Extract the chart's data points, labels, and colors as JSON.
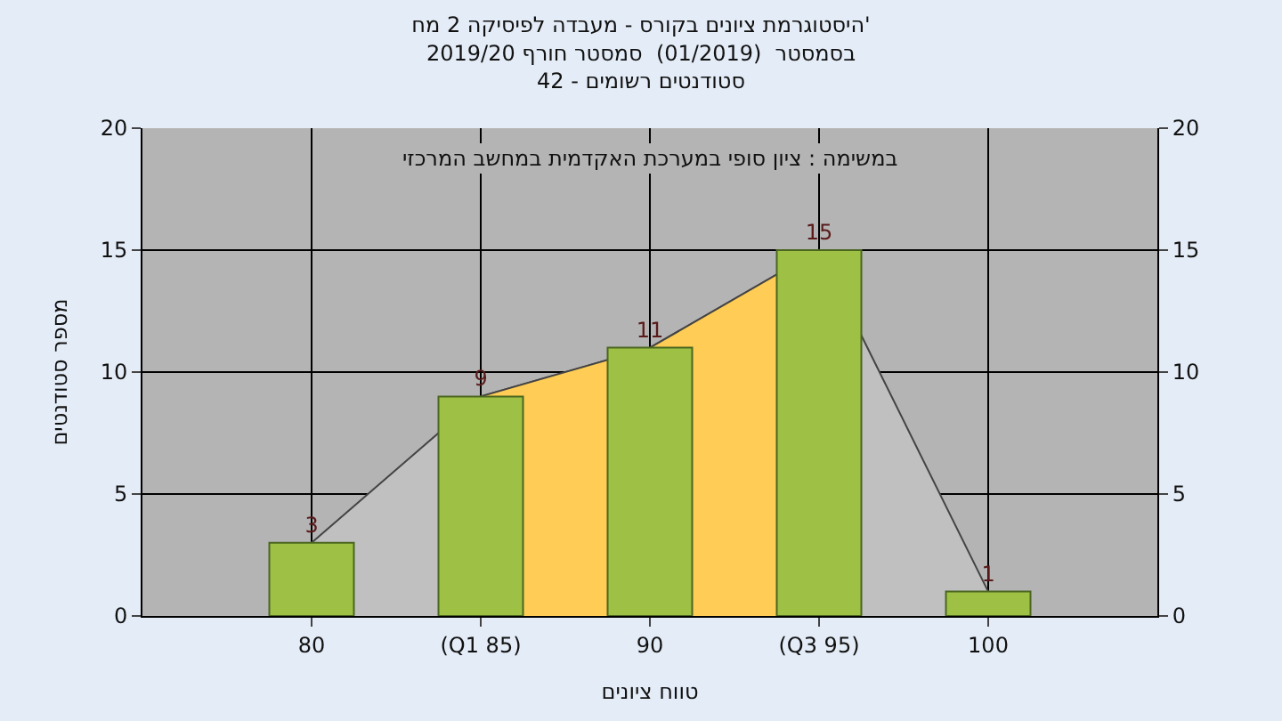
{
  "chart_data": {
    "type": "bar",
    "title": "היסטוגרמת ציונים בקורס - מעבדה לפיסיקה 2 מח'",
    "subtitle": "בסמסטר  (01/2019)  סמסטר חורף 2019/20\nסטודנטים רשומים - 42",
    "xlabel": "טווח ציונים",
    "ylabel": "מספר סטודנטים",
    "annotations": [
      "במשימה : ציון סופי במערכת האקדמית במחשב המרכזי"
    ],
    "categories": [
      "80",
      "(Q1 85)",
      "90",
      "(Q3 95)",
      "100"
    ],
    "series": [
      {
        "type": "area",
        "color": "#c0c0c0",
        "values": [
          3,
          9,
          11,
          15,
          1
        ]
      },
      {
        "type": "area",
        "color": "#ffcc55",
        "values": [
          null,
          9,
          11,
          15,
          null
        ]
      },
      {
        "color": "#9dc045",
        "values": [
          3,
          9,
          11,
          15,
          1
        ],
        "data_labels": true
      }
    ],
    "ylim": [
      0,
      20
    ],
    "yticks": [
      0,
      5,
      10,
      15,
      20
    ],
    "y2lim": [
      0,
      20
    ],
    "y2ticks": [
      0,
      5,
      10,
      15,
      20
    ],
    "grid": true
  }
}
